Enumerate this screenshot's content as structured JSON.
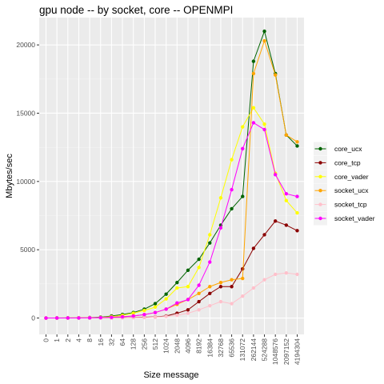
{
  "chart_data": {
    "type": "line",
    "title": "gpu node -- by socket, core -- OPENMPI",
    "xlabel": "Size message",
    "ylabel": "Mbytes/sec",
    "ylim": [
      -1200,
      22000
    ],
    "yticks": [
      0,
      5000,
      10000,
      15000,
      20000
    ],
    "ytick_labels": [
      "0",
      "5000",
      "10000",
      "15000",
      "20000"
    ],
    "grid": true,
    "legend": "right",
    "categories": [
      "0",
      "1",
      "2",
      "4",
      "8",
      "16",
      "32",
      "64",
      "128",
      "256",
      "512",
      "1024",
      "2048",
      "4096",
      "8192",
      "16384",
      "32768",
      "65536",
      "131072",
      "262144",
      "524288",
      "1048576",
      "2097152",
      "4194304"
    ],
    "series": [
      {
        "name": "core_ucx",
        "color": "#006400",
        "values": [
          0,
          2,
          5,
          10,
          30,
          60,
          150,
          260,
          400,
          650,
          1050,
          1750,
          2600,
          3500,
          4300,
          5500,
          6800,
          8000,
          8900,
          18800,
          21000,
          17900,
          13400,
          12600
        ]
      },
      {
        "name": "core_tcp",
        "color": "#8b0000",
        "values": [
          0,
          0,
          1,
          2,
          4,
          8,
          15,
          25,
          40,
          60,
          80,
          150,
          350,
          600,
          1200,
          1800,
          2300,
          2300,
          3600,
          5100,
          6100,
          7100,
          6800,
          6400
        ]
      },
      {
        "name": "core_vader",
        "color": "#ffff00",
        "values": [
          0,
          2,
          5,
          10,
          20,
          40,
          100,
          200,
          350,
          550,
          800,
          1400,
          2200,
          2300,
          3700,
          6100,
          8800,
          11600,
          14000,
          15400,
          14200,
          10600,
          8600,
          7700
        ]
      },
      {
        "name": "socket_ucx",
        "color": "#ffa500",
        "values": [
          0,
          1,
          2,
          5,
          10,
          20,
          50,
          100,
          150,
          250,
          400,
          650,
          1000,
          1350,
          1800,
          2300,
          2600,
          2800,
          2900,
          17900,
          20300,
          17800,
          13400,
          12900
        ]
      },
      {
        "name": "socket_tcp",
        "color": "#ffc0cb",
        "values": [
          0,
          0,
          0,
          1,
          2,
          4,
          8,
          15,
          25,
          40,
          70,
          120,
          200,
          350,
          600,
          900,
          1200,
          1050,
          1600,
          2200,
          2800,
          3200,
          3300,
          3200
        ]
      },
      {
        "name": "socket_vader",
        "color": "#ff00ff",
        "values": [
          0,
          1,
          3,
          6,
          12,
          25,
          50,
          90,
          150,
          250,
          400,
          650,
          1100,
          1350,
          2400,
          4100,
          6600,
          9400,
          12400,
          14300,
          13800,
          10500,
          9100,
          8900
        ]
      }
    ]
  }
}
